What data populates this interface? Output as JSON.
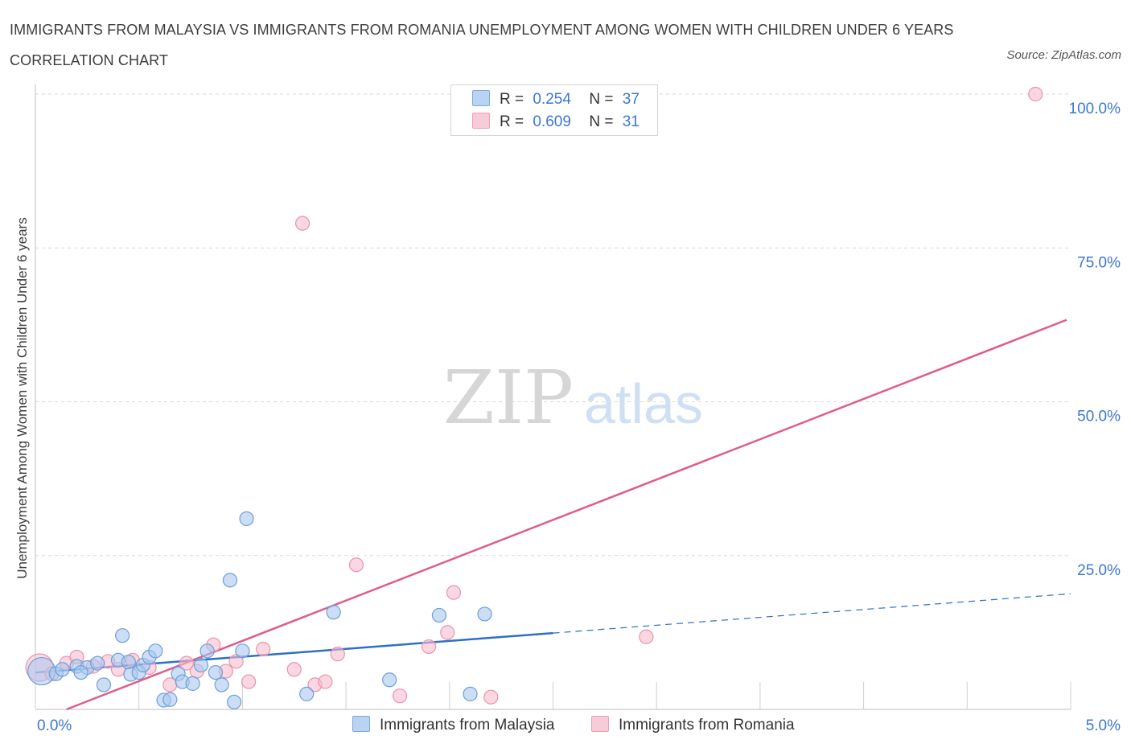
{
  "title": "IMMIGRANTS FROM MALAYSIA VS IMMIGRANTS FROM ROMANIA UNEMPLOYMENT AMONG WOMEN WITH CHILDREN UNDER 6 YEARS CORRELATION CHART",
  "source": "Source: ZipAtlas.com",
  "watermark": {
    "zip": "ZIP",
    "atlas": "atlas"
  },
  "legend": {
    "r_label": "R =",
    "n_label": "N =",
    "malaysia": {
      "r": "0.254",
      "n": "37"
    },
    "romania": {
      "r": "0.609",
      "n": "31"
    }
  },
  "colors": {
    "malaysia_fill": "#a9c8f0",
    "malaysia_stroke": "#6f9fd8",
    "malaysia_line": "#2f6fc4",
    "romania_fill": "#f6bccd",
    "romania_stroke": "#e993b0",
    "romania_line": "#e05c8a",
    "tick_label": "#3b78d0",
    "grid": "#d9d9d9"
  },
  "chart_data": {
    "type": "scatter",
    "xlabel": "",
    "ylabel": "Unemployment Among Women with Children Under 6 years",
    "xlim": [
      0,
      5
    ],
    "ylim": [
      0,
      100
    ],
    "x_tick_labels": [
      {
        "value": 0,
        "label": "0.0%"
      },
      {
        "value": 5,
        "label": "5.0%"
      }
    ],
    "y_tick_labels": [
      {
        "value": 25,
        "label": "25.0%"
      },
      {
        "value": 50,
        "label": "50.0%"
      },
      {
        "value": 75,
        "label": "75.0%"
      },
      {
        "value": 100,
        "label": "100.0%"
      }
    ],
    "grid": true,
    "legend_position": "bottom",
    "series": [
      {
        "name": "Immigrants from Malaysia",
        "color": "#a9c8f0",
        "points": [
          {
            "x": 0.03,
            "y": 6.2,
            "big": true
          },
          {
            "x": 0.1,
            "y": 5.8
          },
          {
            "x": 0.13,
            "y": 6.5
          },
          {
            "x": 0.2,
            "y": 7.0
          },
          {
            "x": 0.25,
            "y": 6.8
          },
          {
            "x": 0.3,
            "y": 7.5
          },
          {
            "x": 0.22,
            "y": 6.0
          },
          {
            "x": 0.33,
            "y": 4.0
          },
          {
            "x": 0.4,
            "y": 8.0
          },
          {
            "x": 0.45,
            "y": 7.7
          },
          {
            "x": 0.42,
            "y": 12.0
          },
          {
            "x": 0.46,
            "y": 5.7
          },
          {
            "x": 0.5,
            "y": 6.0
          },
          {
            "x": 0.52,
            "y": 7.2
          },
          {
            "x": 0.55,
            "y": 8.5
          },
          {
            "x": 0.58,
            "y": 9.5
          },
          {
            "x": 0.62,
            "y": 1.5
          },
          {
            "x": 0.65,
            "y": 1.6
          },
          {
            "x": 0.69,
            "y": 5.8
          },
          {
            "x": 0.71,
            "y": 4.5
          },
          {
            "x": 0.76,
            "y": 4.2
          },
          {
            "x": 0.8,
            "y": 7.2
          },
          {
            "x": 0.83,
            "y": 9.5
          },
          {
            "x": 0.87,
            "y": 6.0
          },
          {
            "x": 0.9,
            "y": 4.0
          },
          {
            "x": 0.94,
            "y": 21.0
          },
          {
            "x": 0.96,
            "y": 1.2
          },
          {
            "x": 1.0,
            "y": 9.5
          },
          {
            "x": 1.02,
            "y": 31.0
          },
          {
            "x": 1.31,
            "y": 2.5
          },
          {
            "x": 1.44,
            "y": 15.8
          },
          {
            "x": 1.71,
            "y": 4.8
          },
          {
            "x": 1.95,
            "y": 15.3
          },
          {
            "x": 2.1,
            "y": 2.5
          },
          {
            "x": 2.17,
            "y": 15.5
          }
        ],
        "trend": {
          "x0": 0.0,
          "y0": 6.0,
          "x1": 2.5,
          "y1": 12.4,
          "dashed_x1": 5.0,
          "dashed_y1": 18.8
        }
      },
      {
        "name": "Immigrants from Romania",
        "color": "#f6bccd",
        "points": [
          {
            "x": 0.02,
            "y": 6.8,
            "big": true
          },
          {
            "x": 0.08,
            "y": 5.8
          },
          {
            "x": 0.15,
            "y": 7.5
          },
          {
            "x": 0.2,
            "y": 8.5
          },
          {
            "x": 0.28,
            "y": 7.0
          },
          {
            "x": 0.35,
            "y": 7.8
          },
          {
            "x": 0.4,
            "y": 6.5
          },
          {
            "x": 0.47,
            "y": 8.0
          },
          {
            "x": 0.55,
            "y": 6.8
          },
          {
            "x": 0.65,
            "y": 4.0
          },
          {
            "x": 0.73,
            "y": 7.5
          },
          {
            "x": 0.78,
            "y": 6.2
          },
          {
            "x": 0.86,
            "y": 10.5
          },
          {
            "x": 0.92,
            "y": 6.2
          },
          {
            "x": 0.97,
            "y": 7.8
          },
          {
            "x": 1.03,
            "y": 4.5
          },
          {
            "x": 1.1,
            "y": 9.8
          },
          {
            "x": 1.25,
            "y": 6.5
          },
          {
            "x": 1.29,
            "y": 79.0
          },
          {
            "x": 1.35,
            "y": 4.0
          },
          {
            "x": 1.4,
            "y": 4.5
          },
          {
            "x": 1.46,
            "y": 9.0
          },
          {
            "x": 1.55,
            "y": 23.5
          },
          {
            "x": 1.76,
            "y": 2.2
          },
          {
            "x": 1.9,
            "y": 10.2
          },
          {
            "x": 1.99,
            "y": 12.5
          },
          {
            "x": 2.02,
            "y": 19.0
          },
          {
            "x": 2.2,
            "y": 2.0
          },
          {
            "x": 2.95,
            "y": 11.8
          },
          {
            "x": 4.83,
            "y": 100.0
          }
        ],
        "trend": {
          "x0": 0.15,
          "y0": 0.0,
          "x1": 4.98,
          "y1": 63.3
        }
      }
    ]
  }
}
